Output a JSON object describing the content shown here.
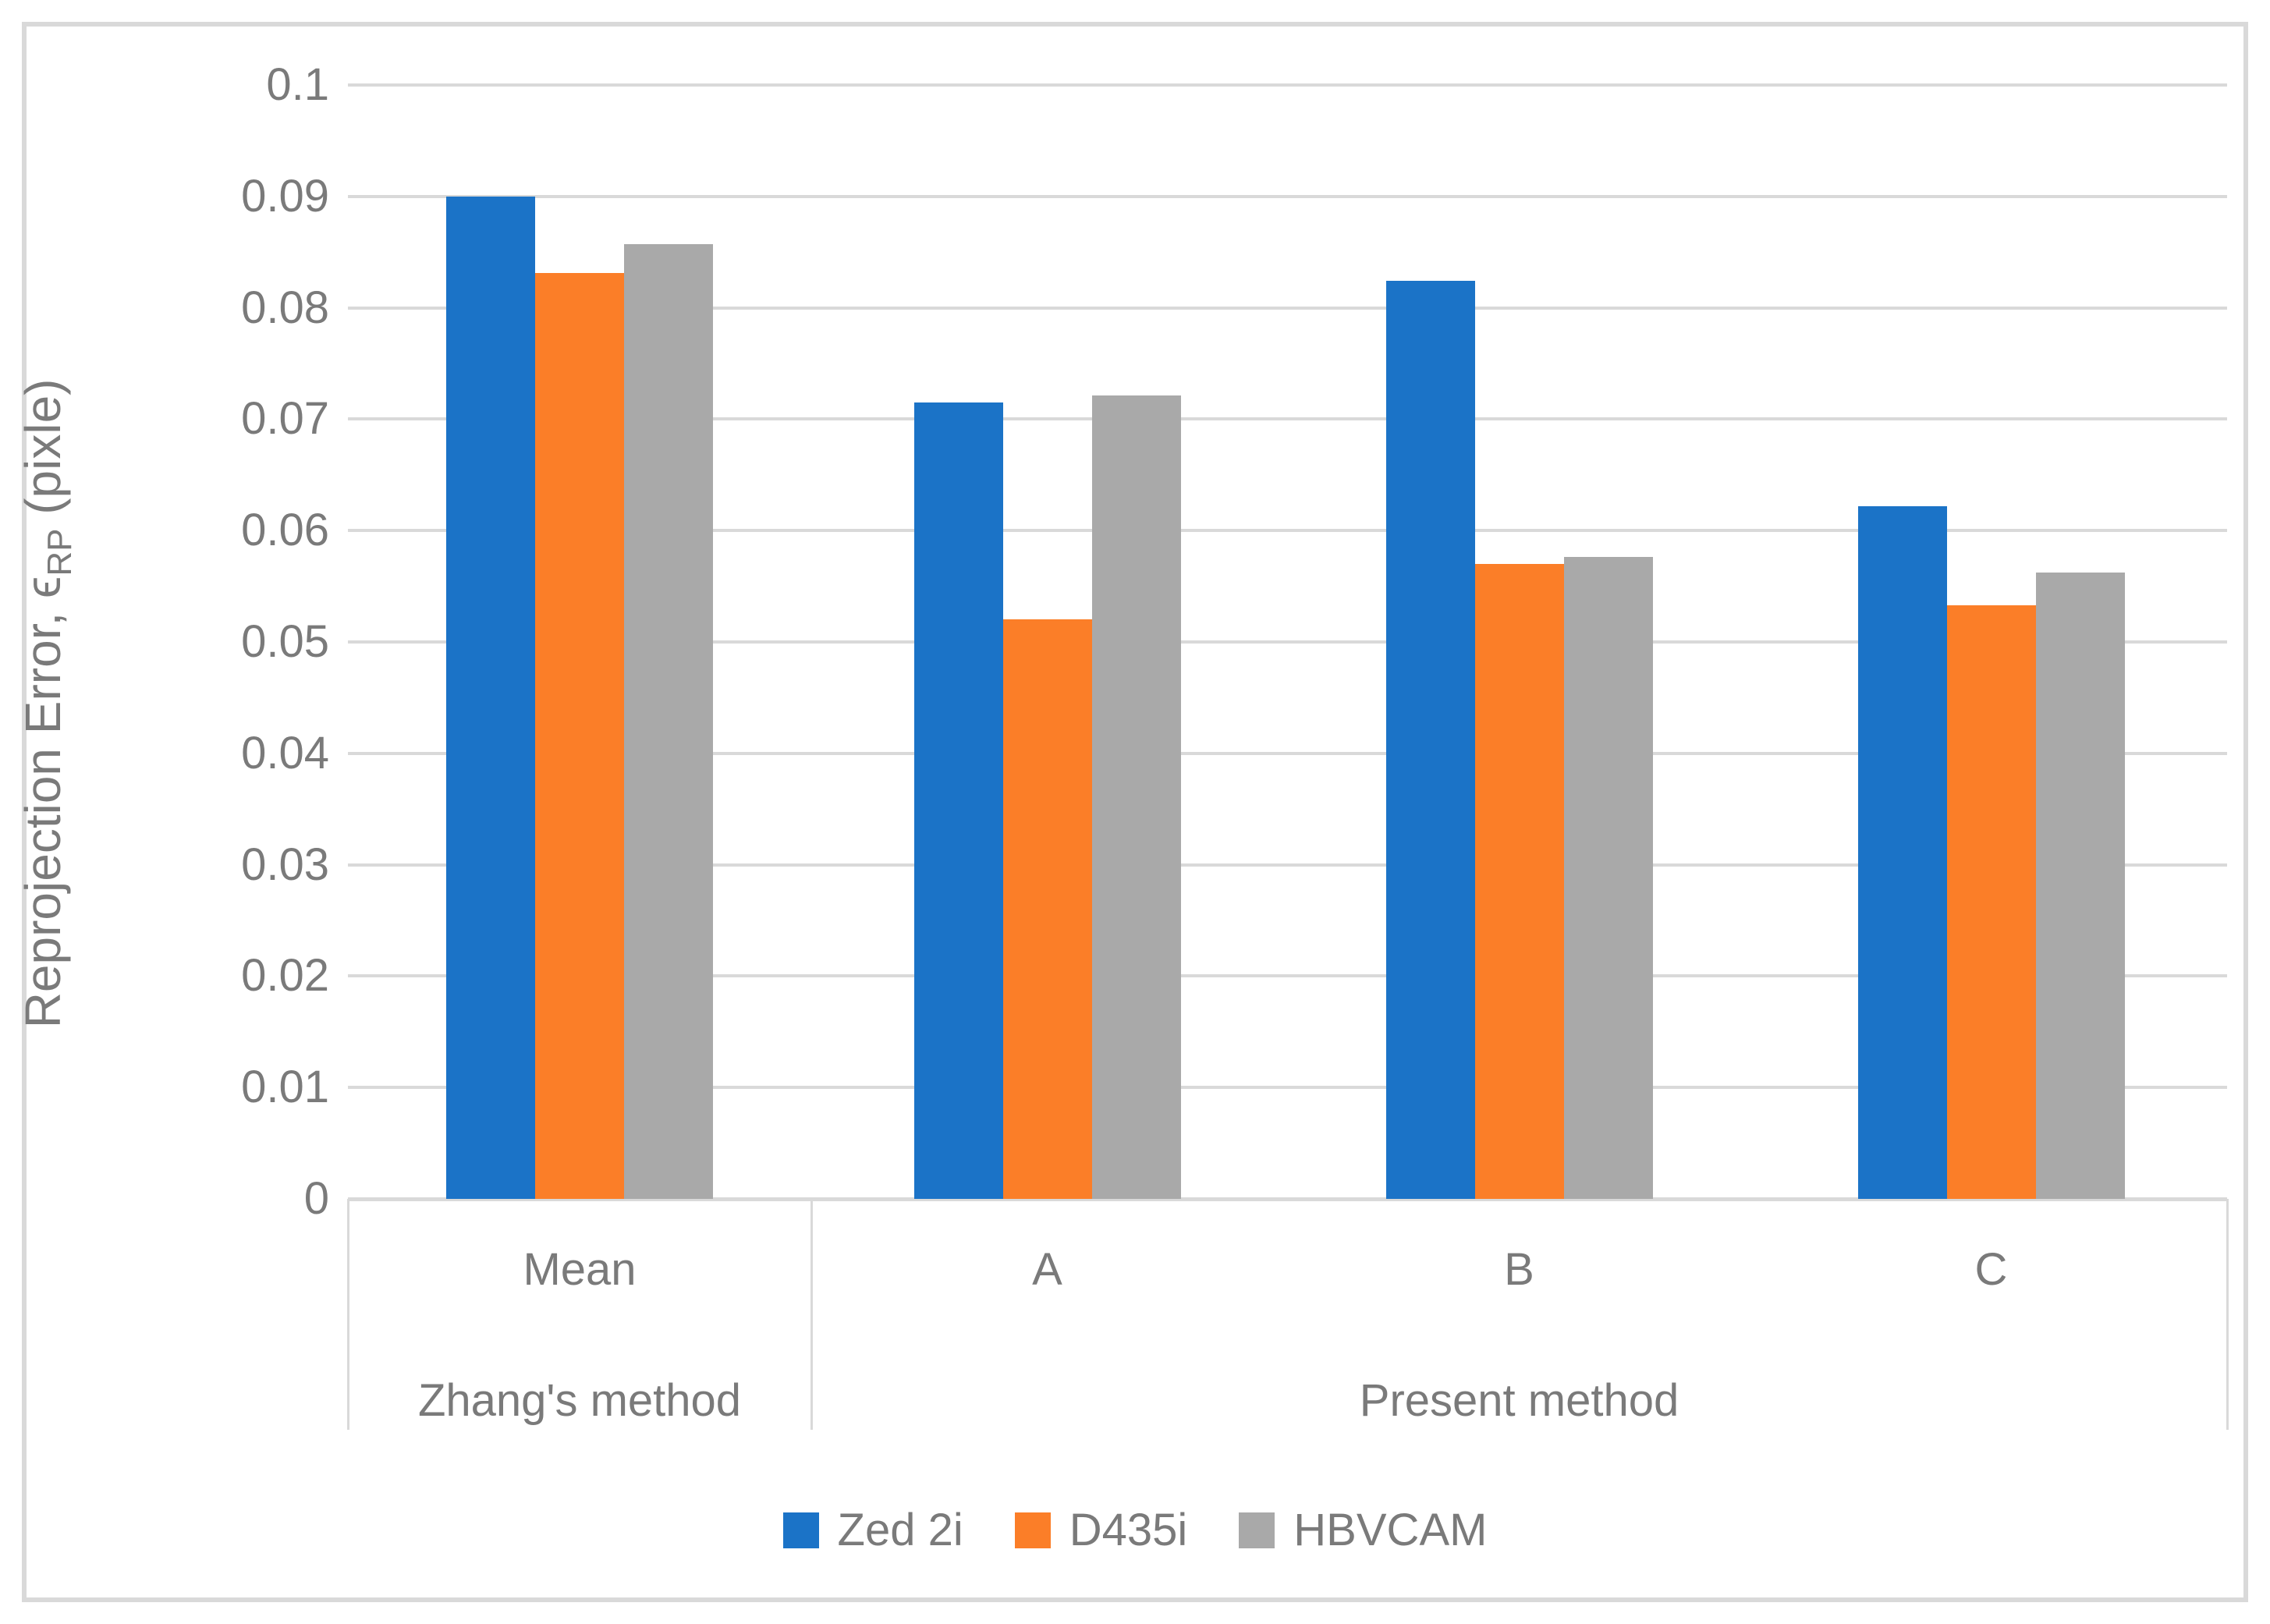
{
  "figure": {
    "border_color": "#D9D9D9",
    "background": "#FFFFFF"
  },
  "y_axis": {
    "title_prefix": "Reprojection Error, ϵ",
    "title_subscript": "RP",
    "title_suffix": " (pixle)",
    "tick_labels": [
      "0.1",
      "0.09",
      "0.08",
      "0.07",
      "0.06",
      "0.05",
      "0.04",
      "0.03",
      "0.02",
      "0.01",
      "0"
    ],
    "min": 0,
    "max": 0.1,
    "step": 0.01
  },
  "x_axis": {
    "categories": [
      "Mean",
      "A",
      "B",
      "C"
    ],
    "group_labels": [
      {
        "label": "Zhang's method",
        "start_category": 0,
        "end_category": 0
      },
      {
        "label": "Present method",
        "start_category": 1,
        "end_category": 3
      }
    ]
  },
  "legend": [
    {
      "name": "Zed 2i",
      "color": "#1B73C7"
    },
    {
      "name": "D435i",
      "color": "#FB7E28"
    },
    {
      "name": "HBVCAM",
      "color": "#A9A9A9"
    }
  ],
  "colors": {
    "gridline": "#D9D9D9",
    "axis_text": "#7A7A7A"
  },
  "chart_data": {
    "type": "bar",
    "title": "",
    "categories": [
      "Mean",
      "A",
      "B",
      "C"
    ],
    "category_groups": {
      "Mean": "Zhang's method",
      "A": "Present method",
      "B": "Present method",
      "C": "Present method"
    },
    "series": [
      {
        "name": "Zed 2i",
        "color": "#1B73C7",
        "values": [
          0.09,
          0.0715,
          0.0824,
          0.0622
        ]
      },
      {
        "name": "D435i",
        "color": "#FB7E28",
        "values": [
          0.0831,
          0.052,
          0.057,
          0.0533
        ]
      },
      {
        "name": "HBVCAM",
        "color": "#A9A9A9",
        "values": [
          0.0857,
          0.0721,
          0.0576,
          0.0562
        ]
      }
    ],
    "xlabel": "",
    "ylabel": "Reprojection Error, ϵRP (pixle)",
    "ylim": [
      0,
      0.1
    ],
    "ytick_step": 0.01,
    "grid": true,
    "legend_position": "bottom"
  }
}
